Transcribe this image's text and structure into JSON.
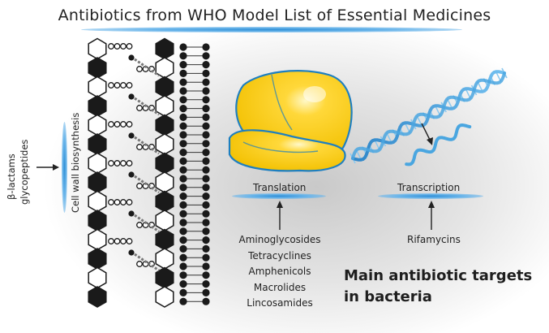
{
  "title": "Antibiotics from WHO Model List of Essential Medicines",
  "cell_wall": {
    "label": "Cell wall biosynthesis",
    "drugs_line1": "β-lactams",
    "drugs_line2": "glycopeptides"
  },
  "translation": {
    "label": "Translation",
    "drugs": [
      "Aminoglycosides",
      "Tetracyclines",
      "Amphenicols",
      "Macrolides",
      "Lincosamides"
    ]
  },
  "transcription": {
    "label": "Transcription",
    "drugs": [
      "Rifamycins"
    ]
  },
  "main_heading": {
    "line1": "Main antibiotic targets",
    "line2": "in bacteria"
  },
  "colors": {
    "ribosome": "#f8c900",
    "ribosome_outline": "#1e7fc0",
    "dna": "#4aa6e0",
    "accent_blue": "#2f8fd6",
    "hexagon_dark": "#1a1a1a"
  }
}
